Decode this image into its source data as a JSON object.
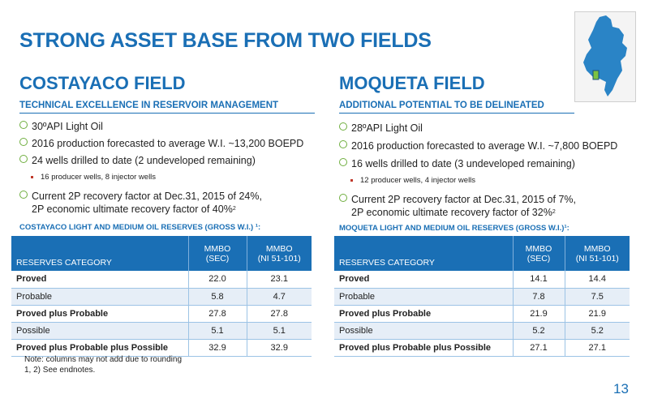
{
  "slide": {
    "title": "STRONG ASSET BASE FROM TWO FIELDS",
    "page_number": "13"
  },
  "costayaco": {
    "title": "COSTAYACO FIELD",
    "subhead": "TECHNICAL EXCELLENCE IN RESERVOIR MANAGEMENT",
    "bullets": [
      "30ºAPI Light Oil",
      "2016 production forecasted to average W.I. ~13,200 BOEPD",
      "24 wells drilled to date (2 undeveloped remaining)"
    ],
    "sub_bullet": "16 producer wells, 8 injector wells",
    "recovery_line1": "Current 2P recovery factor at Dec.31, 2015 of 24%,",
    "recovery_line2": "2P economic ultimate recovery factor of 40%",
    "recovery_sup": "2",
    "table_caption": "COSTAYACO LIGHT AND MEDIUM OIL RESERVES (GROSS W.I.) ¹:",
    "table": {
      "header": [
        "RESERVES CATEGORY",
        "MMBO\n(SEC)",
        "MMBO\n(NI 51-101)"
      ],
      "rows": [
        [
          "Proved",
          "22.0",
          "23.1"
        ],
        [
          "Probable",
          "5.8",
          "4.7"
        ],
        [
          "Proved plus Probable",
          "27.8",
          "27.8"
        ],
        [
          "Possible",
          "5.1",
          "5.1"
        ],
        [
          "Proved plus Probable plus Possible",
          "32.9",
          "32.9"
        ]
      ]
    },
    "note1": "Note: columns may not add due to rounding",
    "note2": "1, 2) See endnotes."
  },
  "moqueta": {
    "title": "MOQUETA FIELD",
    "subhead": "ADDITIONAL POTENTIAL TO BE DELINEATED",
    "bullets": [
      "28ºAPI Light Oil",
      "2016 production forecasted to average W.I. ~7,800 BOEPD",
      "16 wells drilled to date (3 undeveloped remaining)"
    ],
    "sub_bullet": "12 producer wells, 4 injector wells",
    "recovery_line1": "Current 2P recovery factor at Dec.31, 2015 of  7%,",
    "recovery_line2": "2P economic ultimate recovery factor of 32%",
    "recovery_sup": "2",
    "table_caption": "MOQUETA LIGHT AND MEDIUM OIL RESERVES (GROSS W.I.)¹:",
    "table": {
      "header": [
        "RESERVES CATEGORY",
        "MMBO\n(SEC)",
        "MMBO\n(NI 51-101)"
      ],
      "rows": [
        [
          "Proved",
          "14.1",
          "14.4"
        ],
        [
          "Probable",
          "7.8",
          "7.5"
        ],
        [
          "Proved plus Probable",
          "21.9",
          "21.9"
        ],
        [
          "Possible",
          "5.2",
          "5.2"
        ],
        [
          "Proved plus Probable plus Possible",
          "27.1",
          "27.1"
        ]
      ]
    }
  },
  "colors": {
    "accent": "#1a6fb5",
    "bullet": "#6fae3f",
    "map_land": "#2a84c6",
    "map_marker": "#7cc242"
  },
  "icons": {
    "map": "colombia-map-icon",
    "bullet": "hollow-circle-bullet"
  }
}
